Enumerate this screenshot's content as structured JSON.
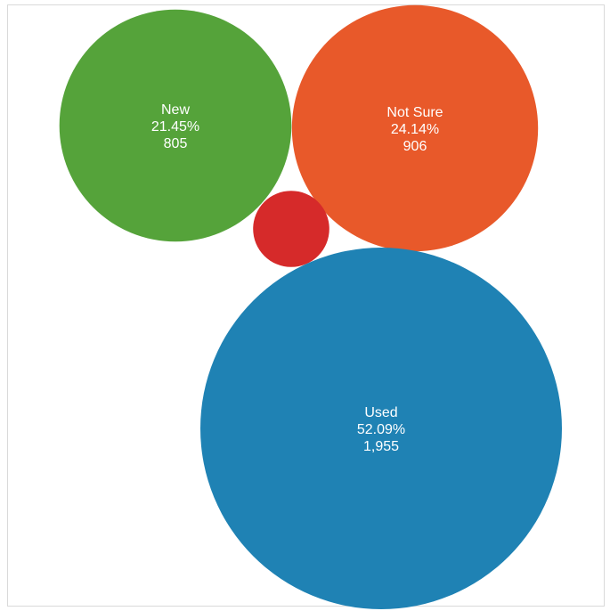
{
  "chart_data": {
    "type": "bubble",
    "title": "",
    "legend": "none",
    "series": [
      {
        "name": "New",
        "value": 805,
        "percent": "21.45%",
        "value_label": "805",
        "color": "#55a33a"
      },
      {
        "name": "Not Sure",
        "value": 906,
        "percent": "24.14%",
        "value_label": "906",
        "color": "#e8592a"
      },
      {
        "name": "",
        "value": 87,
        "percent": "",
        "value_label": "",
        "color": "#d62a2a"
      },
      {
        "name": "Used",
        "value": 1955,
        "percent": "52.09%",
        "value_label": "1,955",
        "color": "#1f82b4"
      }
    ]
  }
}
